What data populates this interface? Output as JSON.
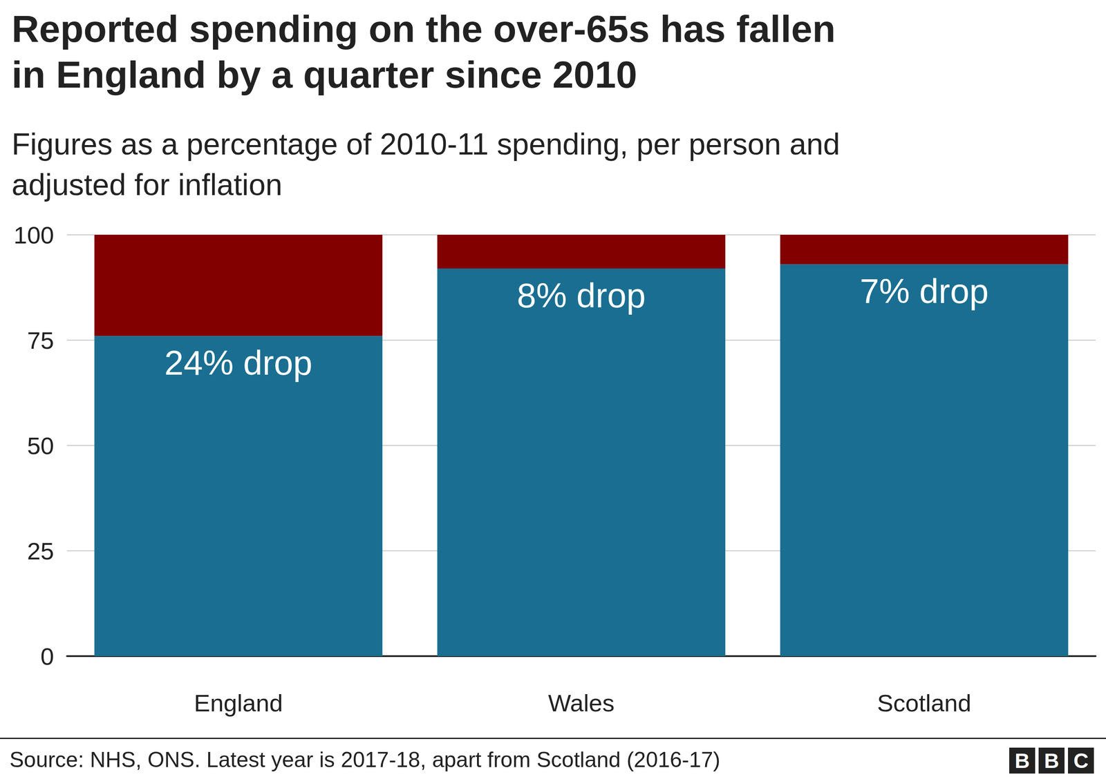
{
  "chart_data": {
    "type": "bar",
    "title": "Reported spending on the over-65s has fallen\nin England by a quarter since 2010",
    "subtitle": "Figures as a percentage of 2010-11 spending, per person and\nadjusted for inflation",
    "categories": [
      "England",
      "Wales",
      "Scotland"
    ],
    "series": [
      {
        "color": "#1a6e91",
        "values": [
          76,
          92,
          93
        ]
      },
      {
        "color": "#820000",
        "values": [
          24,
          8,
          7
        ],
        "data_labels": true,
        "value_labels": [
          "24% drop",
          "8% drop",
          "7% drop"
        ]
      }
    ],
    "stacked": true,
    "ylim": [
      0,
      100
    ],
    "yticks": [
      0,
      25,
      50,
      75,
      100
    ],
    "grid": true,
    "source": "Source: NHS, ONS. Latest year is 2017-18, apart from Scotland (2016-17)",
    "logo": "BBC"
  }
}
